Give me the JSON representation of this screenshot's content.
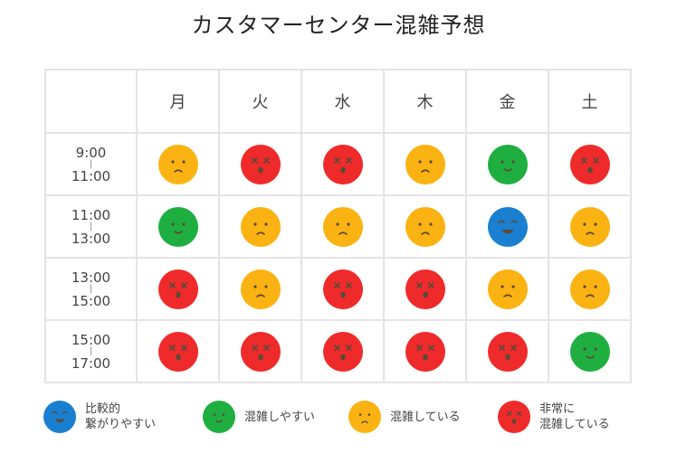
{
  "title": "カスタマーセンター混雑予想",
  "days": [
    "月",
    "火",
    "水",
    "木",
    "金",
    "土"
  ],
  "slots": [
    {
      "start": "9:00",
      "sep": "|",
      "end": "11:00",
      "levels": [
        "busy",
        "very-busy",
        "very-busy",
        "busy",
        "easy",
        "very-busy"
      ]
    },
    {
      "start": "11:00",
      "sep": "|",
      "end": "13:00",
      "levels": [
        "easy",
        "busy",
        "busy",
        "busy",
        "very-easy",
        "busy"
      ]
    },
    {
      "start": "13:00",
      "sep": "|",
      "end": "15:00",
      "levels": [
        "very-busy",
        "busy",
        "very-busy",
        "very-busy",
        "busy",
        "busy"
      ]
    },
    {
      "start": "15:00",
      "sep": "|",
      "end": "17:00",
      "levels": [
        "very-busy",
        "very-busy",
        "very-busy",
        "very-busy",
        "very-busy",
        "easy"
      ]
    }
  ],
  "legend": [
    {
      "level": "very-easy",
      "label": "比較的\n繋がりやすい"
    },
    {
      "level": "easy",
      "label": "混雑しやすい"
    },
    {
      "level": "busy",
      "label": "混雑している"
    },
    {
      "level": "very-busy",
      "label": "非常に\n混雑している"
    }
  ],
  "colors": {
    "very-easy": "#1a7fd0",
    "easy": "#1fae40",
    "busy": "#fbb313",
    "very-busy": "#ef2a2a"
  }
}
